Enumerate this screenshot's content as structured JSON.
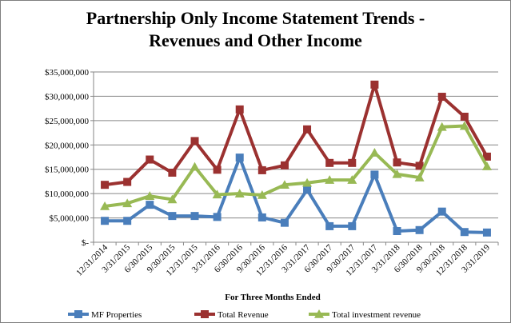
{
  "chart_data": {
    "type": "line",
    "title_line1": "Partnership Only Income Statement Trends -",
    "title_line2": "Revenues and Other Income",
    "xlabel": "For Three Months  Ended",
    "ylabel": "",
    "ylim": [
      0,
      35000000
    ],
    "y_ticks": [
      0,
      5000000,
      10000000,
      15000000,
      20000000,
      25000000,
      30000000,
      35000000
    ],
    "y_tick_labels": [
      "$-",
      "$5,000,000",
      "$10,000,000",
      "$15,000,000",
      "$20,000,000",
      "$25,000,000",
      "$30,000,000",
      "$35,000,000"
    ],
    "grid": true,
    "legend_position": "bottom",
    "categories": [
      "12/31/2014",
      "3/31/2015",
      "6/30/2015",
      "9/30/2015",
      "12/31/2015",
      "3/31/2016",
      "6/30/2016",
      "9/30/2016",
      "12/31/2016",
      "3/31/2017",
      "6/30/2017",
      "9/30/2017",
      "12/31/2017",
      "3/31/2018",
      "6/30/2018",
      "9/30/2018",
      "12/31/2018",
      "3/31/2019"
    ],
    "series": [
      {
        "name": "MF Properties",
        "color": "#4a7ebb",
        "marker": "square",
        "values": [
          4400000,
          4400000,
          7700000,
          5400000,
          5400000,
          5200000,
          17400000,
          5100000,
          4000000,
          10800000,
          3300000,
          3300000,
          13900000,
          2300000,
          2500000,
          6300000,
          2100000,
          2000000
        ]
      },
      {
        "name": "Total Revenue",
        "color": "#9b3130",
        "marker": "square",
        "values": [
          11800000,
          12400000,
          17000000,
          14300000,
          20800000,
          14900000,
          27300000,
          14800000,
          15800000,
          23200000,
          16300000,
          16300000,
          32400000,
          16400000,
          15700000,
          29900000,
          25800000,
          17600000
        ]
      },
      {
        "name": "Total investment revenue",
        "color": "#98b954",
        "marker": "triangle",
        "values": [
          7400000,
          8000000,
          9500000,
          8800000,
          15500000,
          9800000,
          10000000,
          9700000,
          11800000,
          12200000,
          12800000,
          12800000,
          18400000,
          14000000,
          13300000,
          23700000,
          23900000,
          15600000
        ]
      }
    ]
  }
}
